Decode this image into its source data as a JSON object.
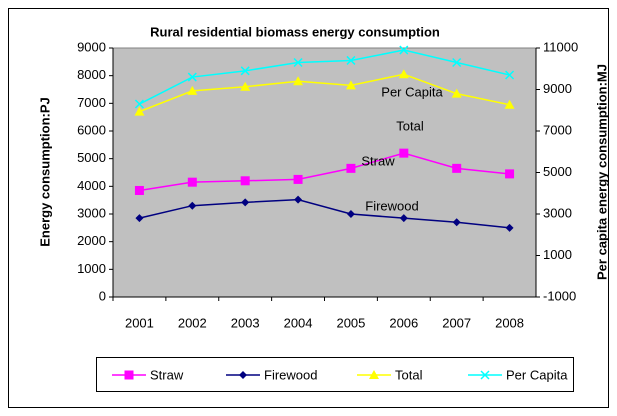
{
  "chart_data": {
    "type": "line",
    "title": "Rural residential biomass energy consumption",
    "y_label": "Energy consumption:PJ",
    "y2_label": "Per capita energy consumption:MJ",
    "categories": [
      "2001",
      "2002",
      "2003",
      "2004",
      "2005",
      "2006",
      "2007",
      "2008"
    ],
    "series": [
      {
        "name": "Straw",
        "color": "#ff00ff",
        "marker": "square",
        "values": [
          3850,
          4150,
          4200,
          4250,
          4650,
          5200,
          4650,
          4450
        ]
      },
      {
        "name": "Firewood",
        "color": "#000080",
        "marker": "diamond",
        "values": [
          2850,
          3300,
          3420,
          3520,
          3000,
          2850,
          2700,
          2500
        ]
      },
      {
        "name": "Total",
        "color": "#ffff00",
        "marker": "triangle",
        "values": [
          6700,
          7450,
          7600,
          7800,
          7650,
          8050,
          7350,
          6950
        ]
      },
      {
        "name": "Per Capita",
        "color": "#00ffff",
        "marker": "x",
        "axis": "y2",
        "values": [
          8300,
          9600,
          9900,
          10300,
          10400,
          10900,
          10300,
          9700
        ]
      }
    ],
    "annotations": [
      "Per Capita",
      "Total",
      "Straw",
      "Firewood"
    ],
    "ylim": [
      0,
      9000
    ],
    "yticks": [
      0,
      1000,
      2000,
      3000,
      4000,
      5000,
      6000,
      7000,
      8000,
      9000
    ],
    "y2lim": [
      -1000,
      11000
    ],
    "y2ticks": [
      -1000,
      1000,
      3000,
      5000,
      7000,
      9000,
      11000
    ],
    "grid": false,
    "plot_background": "#c0c0c0",
    "legend": "bottom"
  }
}
